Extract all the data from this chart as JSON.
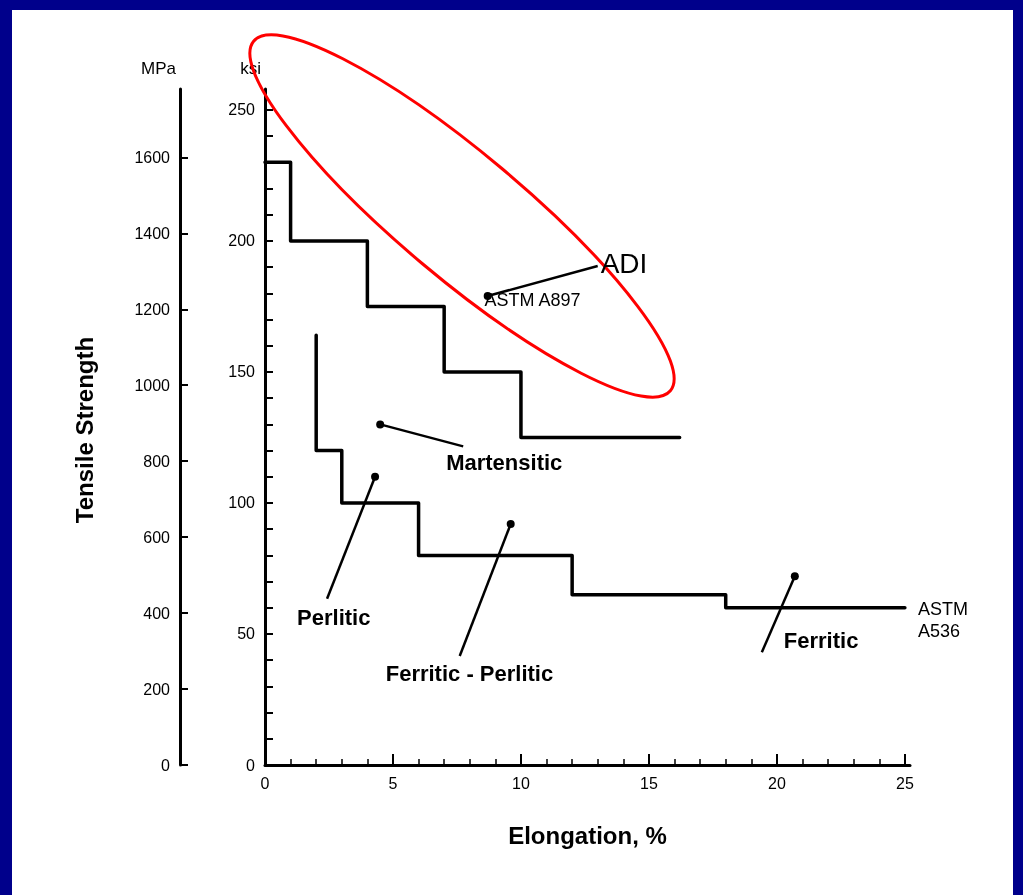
{
  "chart_data": {
    "type": "step",
    "xlabel": "Elongation, %",
    "ylabel": "ksi",
    "y2label": "MPa",
    "xlim": [
      0,
      25.2
    ],
    "xticks": [
      0,
      {
        "value": 1,
        "label": null
      },
      {
        "value": 2,
        "label": null
      },
      {
        "value": 3,
        "label": null
      },
      {
        "value": 4,
        "label": null
      },
      5,
      {
        "value": 6,
        "label": null
      },
      {
        "value": 7,
        "label": null
      },
      {
        "value": 8,
        "label": null
      },
      {
        "value": 9,
        "label": null
      },
      10,
      {
        "value": 11,
        "label": null
      },
      {
        "value": 12,
        "label": null
      },
      {
        "value": 13,
        "label": null
      },
      {
        "value": 14,
        "label": null
      },
      15,
      {
        "value": 16,
        "label": null
      },
      {
        "value": 17,
        "label": null
      },
      {
        "value": 18,
        "label": null
      },
      {
        "value": 19,
        "label": null
      },
      20,
      {
        "value": 21,
        "label": null
      },
      {
        "value": 22,
        "label": null
      },
      {
        "value": 23,
        "label": null
      },
      {
        "value": 24,
        "label": null
      },
      25
    ],
    "ylim": [
      0,
      258
    ],
    "yticks": [
      0,
      {
        "value": 10,
        "label": null
      },
      {
        "value": 20,
        "label": null
      },
      {
        "value": 30,
        "label": null
      },
      {
        "value": 40,
        "label": null
      },
      50,
      {
        "value": 60,
        "label": null
      },
      {
        "value": 70,
        "label": null
      },
      {
        "value": 80,
        "label": null
      },
      {
        "value": 90,
        "label": null
      },
      100,
      {
        "value": 110,
        "label": null
      },
      {
        "value": 120,
        "label": null
      },
      {
        "value": 130,
        "label": null
      },
      {
        "value": 140,
        "label": null
      },
      150,
      {
        "value": 160,
        "label": null
      },
      {
        "value": 170,
        "label": null
      },
      {
        "value": 180,
        "label": null
      },
      {
        "value": 190,
        "label": null
      },
      200,
      {
        "value": 210,
        "label": null
      },
      {
        "value": 220,
        "label": null
      },
      {
        "value": 230,
        "label": null
      },
      {
        "value": 240,
        "label": null
      },
      250
    ],
    "y2lim": [
      0,
      1780
    ],
    "y2ticks": [
      0,
      200,
      400,
      600,
      800,
      1000,
      1200,
      1400,
      1600
    ],
    "series": [
      {
        "name": "ASTM A897",
        "color": "#000000",
        "x": [
          0,
          1,
          4,
          7,
          10,
          16.2
        ],
        "values": [
          230,
          200,
          175,
          150,
          125,
          125
        ]
      },
      {
        "name": "ASTM A536",
        "color": "#000000",
        "x": [
          2,
          2,
          3,
          6,
          12,
          18,
          25
        ],
        "values": [
          164,
          120,
          100,
          80,
          65,
          60,
          60
        ]
      }
    ],
    "marker": "none",
    "line_style": "solid",
    "grid": false,
    "annotations": [
      {
        "text": "ADI",
        "x": 8.7,
        "y": 179
      },
      {
        "text": "Martensitic",
        "x": 4.5,
        "y": 130
      },
      {
        "text": "Perlitic",
        "x": 4.3,
        "y": 110
      },
      {
        "text": "Ferritic - Perlitic",
        "x": 9.6,
        "y": 92
      },
      {
        "text": "Ferritic",
        "x": 20.7,
        "y": 72
      },
      "Tensile Strength"
    ]
  }
}
